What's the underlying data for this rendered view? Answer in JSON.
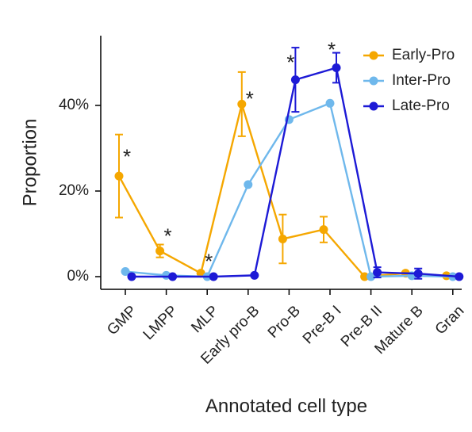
{
  "chart_data": {
    "type": "line",
    "title": "",
    "xlabel": "Annotated cell type",
    "ylabel": "Proportion",
    "categories": [
      "GMP",
      "LMPP",
      "MLP",
      "Early pro-B",
      "Pro-B",
      "Pre-B I",
      "Pre-B II",
      "Mature B",
      "Gran"
    ],
    "ylim": [
      0,
      50
    ],
    "yticks": [
      0,
      20,
      40
    ],
    "ytick_labels": [
      "0%",
      "20%",
      "40%"
    ],
    "grid": false,
    "legend_position": "top-right",
    "series": [
      {
        "name": "Early-Pro",
        "color": "#f5a700",
        "values": [
          23.5,
          6.0,
          0.8,
          40.3,
          8.8,
          11.0,
          0.0,
          0.8,
          0.2
        ],
        "errors": [
          9.7,
          1.5,
          0,
          7.5,
          5.7,
          3.0,
          0,
          0,
          0
        ]
      },
      {
        "name": "Inter-Pro",
        "color": "#6fb8ec",
        "values": [
          1.2,
          0.3,
          0.0,
          21.5,
          36.7,
          40.5,
          0.0,
          0.2,
          0.0
        ],
        "errors": [
          0,
          0,
          0,
          0,
          0,
          0,
          0,
          0,
          0
        ]
      },
      {
        "name": "Late-Pro",
        "color": "#1d1ad6",
        "values": [
          0.0,
          0.0,
          0.0,
          0.3,
          46.0,
          48.8,
          1.0,
          0.7,
          0.0
        ],
        "errors": [
          0,
          0,
          0,
          0,
          7.5,
          3.5,
          1.2,
          1.2,
          0
        ]
      }
    ],
    "annotations": [
      {
        "category": "GMP",
        "text": "*",
        "y": 29
      },
      {
        "category": "LMPP",
        "text": "*",
        "y": 10.5
      },
      {
        "category": "MLP",
        "text": "*",
        "y": 4.5
      },
      {
        "category": "Early pro-B",
        "text": "*",
        "y": 42.5
      },
      {
        "category": "Pro-B",
        "text": "*",
        "y": 51
      },
      {
        "category": "Pre-B I",
        "text": "*",
        "y": 54
      }
    ]
  }
}
